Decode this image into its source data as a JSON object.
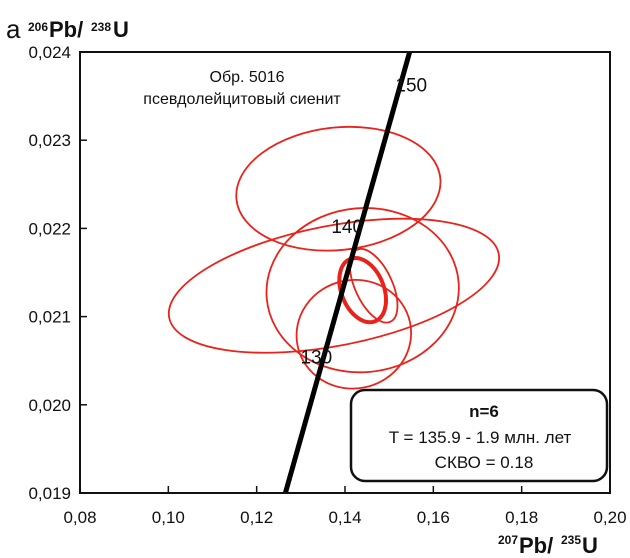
{
  "chart_data": {
    "type": "scatter",
    "panel_letter": "а",
    "y_title": {
      "sup": "206",
      "main": "Pb/",
      "sup2": "238",
      "main2": "U"
    },
    "x_title": {
      "sup": "207",
      "main": "Pb/",
      "sup2": "235",
      "main2": "U"
    },
    "xlim": [
      0.08,
      0.2
    ],
    "ylim": [
      0.019,
      0.024
    ],
    "x_ticks": [
      "0,08",
      "0,10",
      "0,12",
      "0,14",
      "0,16",
      "0,18",
      "0,20"
    ],
    "y_ticks": [
      "0,019",
      "0,020",
      "0,021",
      "0,022",
      "0,023",
      "0,024"
    ],
    "x_tick_values": [
      0.08,
      0.1,
      0.12,
      0.14,
      0.16,
      0.18,
      0.2
    ],
    "y_tick_values": [
      0.019,
      0.02,
      0.021,
      0.022,
      0.023,
      0.024
    ],
    "sample_label": [
      "Обр. 5016",
      "псевдолейцитовый сиенит"
    ],
    "concordia": {
      "color": "#000000",
      "points": [
        [
          0.1265,
          0.019
        ],
        [
          0.1552,
          0.0241
        ]
      ],
      "age_labels": [
        {
          "text": "150",
          "x": 0.155,
          "y": 0.02355
        },
        {
          "text": "140",
          "x": 0.1405,
          "y": 0.02195
        },
        {
          "text": "130",
          "x": 0.1335,
          "y": 0.02047
        }
      ]
    },
    "ellipses": {
      "color": "#e8231c",
      "items": [
        {
          "cx": 0.1385,
          "cy": 0.02245,
          "rx": 0.0232,
          "ry": 0.000695,
          "angle": 6
        },
        {
          "cx": 0.1375,
          "cy": 0.02135,
          "rx": 0.038,
          "ry": 0.00068,
          "angle": 11
        },
        {
          "cx": 0.144,
          "cy": 0.0213,
          "rx": 0.0218,
          "ry": 0.00093,
          "angle": 5
        },
        {
          "cx": 0.142,
          "cy": 0.0208,
          "rx": 0.013,
          "ry": 0.000615,
          "angle": 12
        },
        {
          "cx": 0.1465,
          "cy": 0.02135,
          "rx": 0.0042,
          "ry": 0.00045,
          "angle": 25
        },
        {
          "cx": 0.144,
          "cy": 0.0213,
          "rx": 0.0048,
          "ry": 0.00038,
          "angle": 22,
          "bold": true
        }
      ]
    },
    "result_box": {
      "n": "n=6",
      "age": "T = 135.9  - 1.9 млн. лет",
      "mswd": "СКВО = 0.18"
    }
  }
}
